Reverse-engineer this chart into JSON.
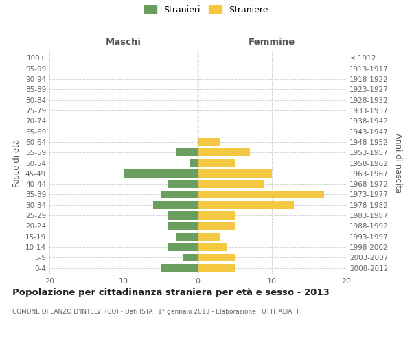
{
  "age_groups": [
    "0-4",
    "5-9",
    "10-14",
    "15-19",
    "20-24",
    "25-29",
    "30-34",
    "35-39",
    "40-44",
    "45-49",
    "50-54",
    "55-59",
    "60-64",
    "65-69",
    "70-74",
    "75-79",
    "80-84",
    "85-89",
    "90-94",
    "95-99",
    "100+"
  ],
  "birth_years": [
    "2008-2012",
    "2003-2007",
    "1998-2002",
    "1993-1997",
    "1988-1992",
    "1983-1987",
    "1978-1982",
    "1973-1977",
    "1968-1972",
    "1963-1967",
    "1958-1962",
    "1953-1957",
    "1948-1952",
    "1943-1947",
    "1938-1942",
    "1933-1937",
    "1928-1932",
    "1923-1927",
    "1918-1922",
    "1913-1917",
    "≤ 1912"
  ],
  "maschi": [
    5,
    2,
    4,
    3,
    4,
    4,
    6,
    5,
    4,
    10,
    1,
    3,
    0,
    0,
    0,
    0,
    0,
    0,
    0,
    0,
    0
  ],
  "femmine": [
    5,
    5,
    4,
    3,
    5,
    5,
    13,
    17,
    9,
    10,
    5,
    7,
    3,
    0,
    0,
    0,
    0,
    0,
    0,
    0,
    0
  ],
  "color_maschi": "#6a9e5e",
  "color_femmine": "#f5c842",
  "title": "Popolazione per cittadinanza straniera per età e sesso - 2013",
  "subtitle": "COMUNE DI LANZO D'INTELVI (CO) - Dati ISTAT 1° gennaio 2013 - Elaborazione TUTTITALIA.IT",
  "header_left": "Maschi",
  "header_right": "Femmine",
  "ylabel_left": "Fasce di età",
  "ylabel_right": "Anni di nascita",
  "legend_maschi": "Stranieri",
  "legend_femmine": "Straniere",
  "xlim": 20,
  "bg_color": "#ffffff",
  "grid_color": "#cccccc",
  "bar_height": 0.75,
  "dpi": 100,
  "figw": 6.0,
  "figh": 5.0
}
